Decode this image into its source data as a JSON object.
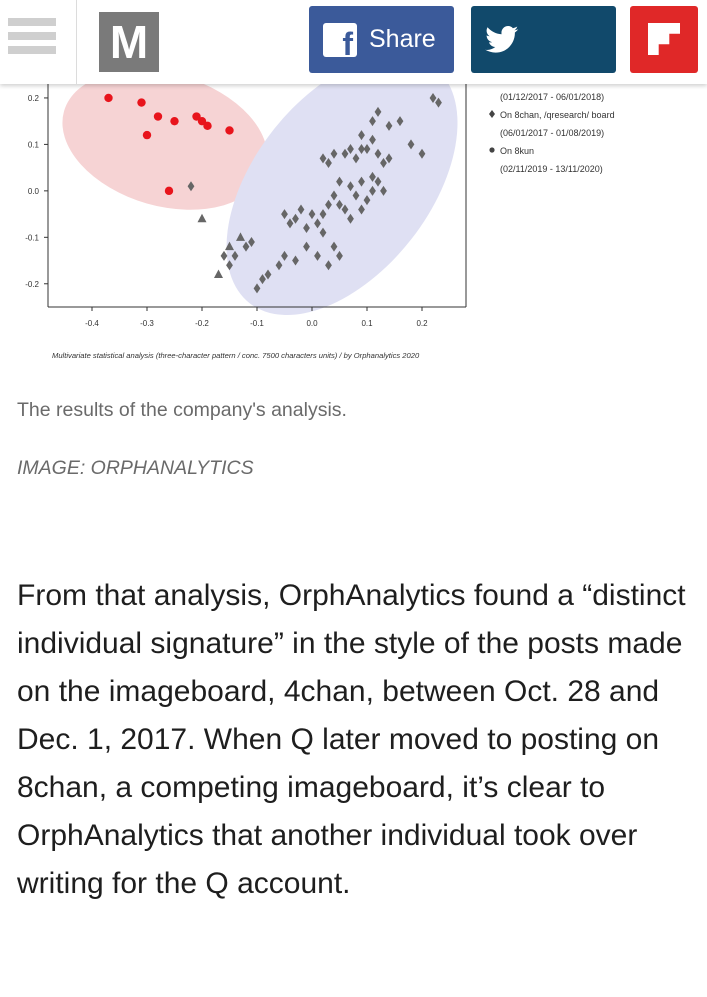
{
  "header": {
    "logo_letter": "M",
    "share_label": "Share",
    "icons": [
      "menu-icon",
      "facebook-icon",
      "twitter-icon",
      "flipboard-icon"
    ]
  },
  "figure": {
    "caption": "The results of the company's analysis.",
    "credit": "IMAGE: ORPHANALYTICS"
  },
  "article": {
    "paragraph": "From that analysis, OrphAnalytics found a “distinct individual signature” in the style of the posts made on the imageboard, 4chan, between Oct. 28 and Dec. 1, 2017. When Q later moved to posting on 8chan, a competing imageboard, it’s clear to OrphAnalytics that another individual took over writing for the Q account."
  },
  "chart_data": {
    "type": "scatter",
    "source_note": "Multivariate statistical analysis (three-character pattern / conc. 7500 characters units) / by Orphanalytics 2020",
    "xlim": [
      -0.48,
      0.28
    ],
    "ylim": [
      -0.25,
      0.23
    ],
    "x_ticks": [
      "-0.4",
      "-0.3",
      "-0.2",
      "-0.1",
      "0.0",
      "0.1",
      "0.2"
    ],
    "x_tick_values": [
      -0.4,
      -0.3,
      -0.2,
      -0.1,
      0.0,
      0.1,
      0.2
    ],
    "y_ticks": [
      "0.2",
      "0.1",
      "0.0",
      "-0.1",
      "-0.2"
    ],
    "y_tick_values": [
      0.2,
      0.1,
      0.0,
      -0.1,
      -0.2
    ],
    "grid": false,
    "legend": [
      {
        "label": "(01/12/2017 - 06/01/2018)",
        "marker": "none"
      },
      {
        "label": "On 8chan, /qresearch/ board",
        "marker": "diamond"
      },
      {
        "label": "(06/01/2017 - 01/08/2019)",
        "marker": "none"
      },
      {
        "label": "On 8kun",
        "marker": "circle"
      },
      {
        "label": "(02/11/2019 - 13/11/2020)",
        "marker": "none"
      }
    ],
    "colors": {
      "red": "#e8141c",
      "grey": "#666666",
      "red_ellipse": "#f6d3d4",
      "blue_ellipse": "#dfe0f3",
      "axis": "#333333"
    },
    "series": [
      {
        "marker": "circle",
        "color": "#e8141c",
        "points": [
          [
            -0.37,
            0.2
          ],
          [
            -0.31,
            0.19
          ],
          [
            -0.28,
            0.16
          ],
          [
            -0.25,
            0.15
          ],
          [
            -0.21,
            0.16
          ],
          [
            -0.2,
            0.15
          ],
          [
            -0.19,
            0.14
          ],
          [
            -0.15,
            0.13
          ],
          [
            -0.3,
            0.12
          ],
          [
            -0.26,
            0.0
          ]
        ]
      },
      {
        "marker": "diamond",
        "color": "#666666",
        "points": [
          [
            -0.22,
            0.01
          ],
          [
            0.22,
            0.2
          ],
          [
            0.23,
            0.19
          ],
          [
            0.12,
            0.17
          ],
          [
            0.14,
            0.14
          ],
          [
            0.16,
            0.15
          ],
          [
            0.11,
            0.15
          ],
          [
            0.09,
            0.12
          ],
          [
            0.11,
            0.11
          ],
          [
            0.07,
            0.09
          ],
          [
            0.09,
            0.09
          ],
          [
            0.04,
            0.08
          ],
          [
            0.06,
            0.08
          ],
          [
            0.08,
            0.07
          ],
          [
            0.12,
            0.08
          ],
          [
            0.1,
            0.09
          ],
          [
            0.18,
            0.1
          ],
          [
            0.2,
            0.08
          ],
          [
            0.14,
            0.07
          ],
          [
            0.13,
            0.06
          ],
          [
            0.02,
            0.07
          ],
          [
            0.03,
            0.06
          ],
          [
            0.05,
            0.02
          ],
          [
            0.07,
            0.01
          ],
          [
            0.09,
            0.02
          ],
          [
            0.11,
            0.03
          ],
          [
            0.12,
            0.02
          ],
          [
            0.11,
            0.0
          ],
          [
            0.08,
            -0.01
          ],
          [
            0.1,
            -0.02
          ],
          [
            0.09,
            -0.04
          ],
          [
            0.13,
            0.0
          ],
          [
            0.04,
            -0.01
          ],
          [
            0.05,
            -0.03
          ],
          [
            0.03,
            -0.03
          ],
          [
            0.06,
            -0.04
          ],
          [
            0.07,
            -0.06
          ],
          [
            0.02,
            -0.05
          ],
          [
            0.0,
            -0.05
          ],
          [
            0.01,
            -0.07
          ],
          [
            -0.02,
            -0.04
          ],
          [
            -0.03,
            -0.06
          ],
          [
            -0.05,
            -0.05
          ],
          [
            -0.04,
            -0.07
          ],
          [
            -0.01,
            -0.08
          ],
          [
            0.02,
            -0.09
          ],
          [
            0.04,
            -0.12
          ],
          [
            0.05,
            -0.14
          ],
          [
            0.03,
            -0.16
          ],
          [
            0.01,
            -0.14
          ],
          [
            -0.01,
            -0.12
          ],
          [
            -0.03,
            -0.15
          ],
          [
            -0.05,
            -0.14
          ],
          [
            -0.06,
            -0.16
          ],
          [
            -0.08,
            -0.18
          ],
          [
            -0.11,
            -0.11
          ],
          [
            -0.14,
            -0.14
          ],
          [
            -0.16,
            -0.14
          ],
          [
            -0.15,
            -0.16
          ],
          [
            -0.09,
            -0.19
          ],
          [
            -0.1,
            -0.21
          ],
          [
            -0.12,
            -0.12
          ]
        ]
      },
      {
        "marker": "triangle",
        "color": "#666666",
        "points": [
          [
            -0.2,
            -0.06
          ],
          [
            -0.13,
            -0.1
          ],
          [
            -0.17,
            -0.18
          ],
          [
            -0.15,
            -0.12
          ]
        ]
      }
    ]
  }
}
